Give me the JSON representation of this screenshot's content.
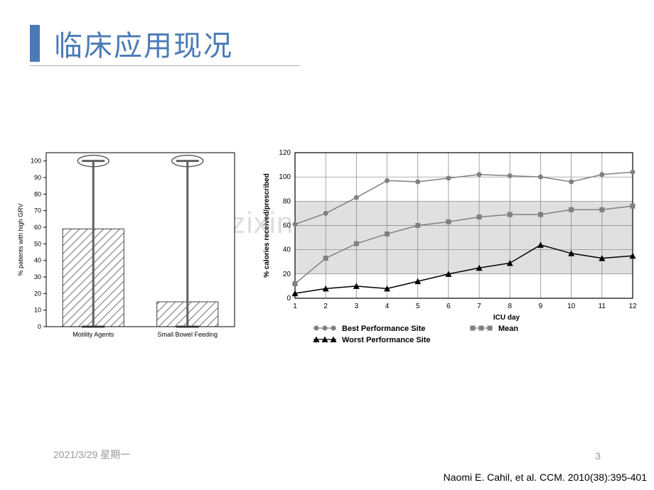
{
  "title": "临床应用现况",
  "accent_color": "#4a7ab8",
  "watermark": "www.zixin.com.cn",
  "footer_date": "2021/3/29 星期一",
  "footer_page": "3",
  "citation": "Naomi E. Cahil, et al. CCM. 2010(38):395-401",
  "bar_chart": {
    "type": "bar",
    "ylabel": "% patients with high GRV",
    "ylim": [
      0,
      105
    ],
    "ytick_step": 10,
    "categories": [
      "Motility Agents",
      "Small Bowel Feeding"
    ],
    "values": [
      59,
      15
    ],
    "error_bars": [
      [
        0,
        100
      ],
      [
        0,
        100
      ]
    ],
    "bar_fill": "hatch",
    "hatch_color": "#707070",
    "bar_border": "#404040",
    "background": "#ffffff",
    "axis_color": "#000000",
    "label_fontsize": 9,
    "tick_fontsize": 9
  },
  "line_chart": {
    "type": "line",
    "xlabel": "ICU day",
    "ylabel": "% calories received/prescribed",
    "xlim": [
      1,
      12
    ],
    "ylim": [
      0,
      120
    ],
    "ytick_step": 20,
    "xticks": [
      1,
      2,
      3,
      4,
      5,
      6,
      7,
      8,
      9,
      10,
      11,
      12
    ],
    "shaded_band": [
      20,
      80
    ],
    "shaded_color": "#e0e0e0",
    "grid_color": "#808080",
    "background": "#ffffff",
    "label_fontsize": 10,
    "tick_fontsize": 10,
    "series": [
      {
        "name": "Best Performance Site",
        "marker": "circle",
        "color": "#808080",
        "linewidth": 1.5,
        "data": [
          61,
          70,
          83,
          97,
          96,
          99,
          102,
          101,
          100,
          96,
          102,
          104
        ]
      },
      {
        "name": "Mean",
        "marker": "square",
        "color": "#808080",
        "linewidth": 1.5,
        "data": [
          12,
          33,
          45,
          53,
          60,
          63,
          67,
          69,
          69,
          73,
          73,
          76
        ]
      },
      {
        "name": "Worst Performance Site",
        "marker": "triangle",
        "color": "#000000",
        "linewidth": 1.5,
        "data": [
          4,
          8,
          10,
          8,
          14,
          20,
          25,
          29,
          44,
          37,
          33,
          35
        ]
      }
    ],
    "legend": {
      "items": [
        "Best Performance Site",
        "Mean",
        "Worst Performance Site"
      ]
    }
  }
}
